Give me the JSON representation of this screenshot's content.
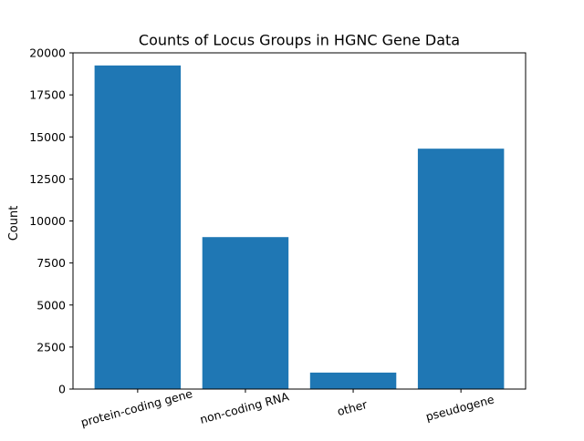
{
  "chart_data": {
    "type": "bar",
    "title": "Counts of Locus Groups in HGNC Gene Data",
    "xlabel": "",
    "ylabel": "Count",
    "categories": [
      "protein-coding gene",
      "non-coding RNA",
      "other",
      "pseudogene"
    ],
    "values": [
      19250,
      9040,
      980,
      14300
    ],
    "ylim": [
      0,
      20000
    ],
    "yticks": [
      0,
      2500,
      5000,
      7500,
      10000,
      12500,
      15000,
      17500,
      20000
    ],
    "ytick_labels": [
      "0",
      "2500",
      "5000",
      "7500",
      "10000",
      "12500",
      "15000",
      "17500",
      "20000"
    ],
    "x_tick_rotation_deg": 15,
    "bar_color": "#1f77b4",
    "grid": false,
    "legend": "none"
  }
}
